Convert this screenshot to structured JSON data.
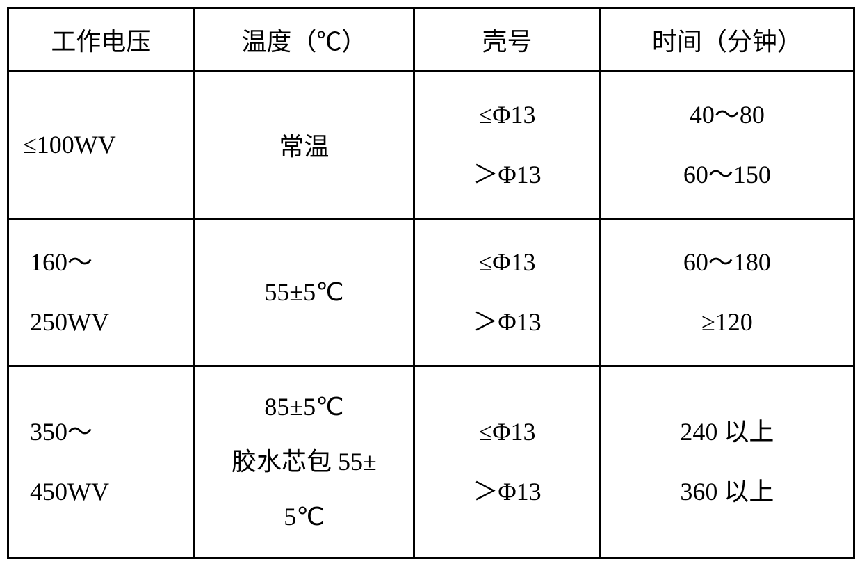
{
  "table": {
    "headers": {
      "voltage": "工作电压",
      "temperature": "温度（℃）",
      "shell": "壳号",
      "time": "时间（分钟）"
    },
    "rows": [
      {
        "voltage": "≤100WV",
        "temperature": "常温",
        "shell_1": "≤Φ13",
        "shell_2": "＞Φ13",
        "time_1": "40～80",
        "time_2": "60～150"
      },
      {
        "voltage_1": "160～",
        "voltage_2": "250WV",
        "temperature": "55±5℃",
        "shell_1": "≤Φ13",
        "shell_2": "＞Φ13",
        "time_1": "60～180",
        "time_2": "≥120"
      },
      {
        "voltage_1": "350～",
        "voltage_2": "450WV",
        "temperature_1": "85±5℃",
        "temperature_2": "胶水芯包 55±",
        "temperature_3": "5℃",
        "shell_1": "≤Φ13",
        "shell_2": "＞Φ13",
        "time_1": "240 以上",
        "time_2": "360 以上"
      }
    ],
    "styling": {
      "border_color": "#000000",
      "border_width": 3,
      "background_color": "#ffffff",
      "text_color": "#000000",
      "font_size": 36,
      "font_family": "SimSun"
    }
  }
}
